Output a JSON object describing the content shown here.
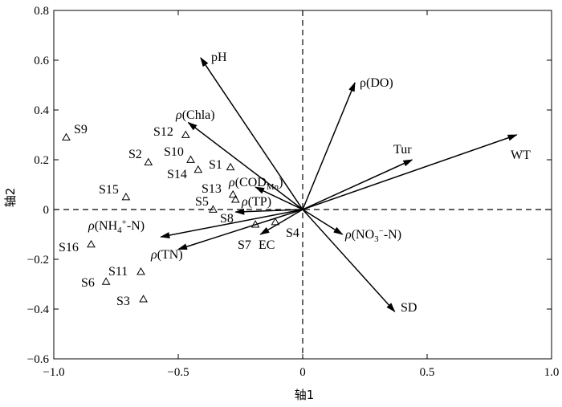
{
  "chart_data": {
    "type": "scatter",
    "xlabel": "轴1",
    "ylabel": "轴2",
    "xlim": [
      -1.0,
      1.0
    ],
    "ylim": [
      -0.6,
      0.8
    ],
    "xticks": [
      -1.0,
      -0.5,
      0,
      0.5,
      1.0
    ],
    "xtick_labels": [
      "−1.0",
      "−0.5",
      "0",
      "0.5",
      "1.0"
    ],
    "yticks": [
      -0.6,
      -0.4,
      -0.2,
      0,
      0.2,
      0.4,
      0.6,
      0.8
    ],
    "ytick_labels": [
      "−0.6",
      "−0.4",
      "−0.2",
      "0",
      "0.2",
      "0.4",
      "0.6",
      "0.8"
    ],
    "reference_lines": {
      "x": 0,
      "y": 0,
      "style": "dashed"
    },
    "sites": [
      {
        "name": "S1",
        "x": -0.29,
        "y": 0.17
      },
      {
        "name": "S2",
        "x": -0.62,
        "y": 0.19
      },
      {
        "name": "S3",
        "x": -0.64,
        "y": -0.36
      },
      {
        "name": "S4",
        "x": -0.11,
        "y": -0.05
      },
      {
        "name": "S5",
        "x": -0.36,
        "y": 0.0
      },
      {
        "name": "S6",
        "x": -0.79,
        "y": -0.29
      },
      {
        "name": "S7",
        "x": -0.19,
        "y": -0.06
      },
      {
        "name": "S8",
        "x": -0.27,
        "y": 0.04
      },
      {
        "name": "S9",
        "x": -0.95,
        "y": 0.29
      },
      {
        "name": "S10",
        "x": -0.45,
        "y": 0.2
      },
      {
        "name": "S11",
        "x": -0.65,
        "y": -0.25
      },
      {
        "name": "S12",
        "x": -0.47,
        "y": 0.3
      },
      {
        "name": "S13",
        "x": -0.28,
        "y": 0.06
      },
      {
        "name": "S14",
        "x": -0.42,
        "y": 0.16
      },
      {
        "name": "S15",
        "x": -0.71,
        "y": 0.05
      },
      {
        "name": "S16",
        "x": -0.85,
        "y": -0.14
      }
    ],
    "vectors": [
      {
        "name": "pH",
        "x": -0.41,
        "y": 0.61
      },
      {
        "name": "ρ(DO)",
        "x": 0.21,
        "y": 0.51
      },
      {
        "name": "ρ(Chla)",
        "x": -0.46,
        "y": 0.35
      },
      {
        "name": "Tur",
        "x": 0.44,
        "y": 0.2
      },
      {
        "name": "WT",
        "x": 0.86,
        "y": 0.3
      },
      {
        "name": "ρ(CODMn)",
        "x": -0.19,
        "y": 0.09
      },
      {
        "name": "ρ(TP)",
        "x": -0.27,
        "y": -0.01
      },
      {
        "name": "ρ(NH4+-N)",
        "x": -0.57,
        "y": -0.11
      },
      {
        "name": "ρ(TN)",
        "x": -0.5,
        "y": -0.16
      },
      {
        "name": "EC",
        "x": -0.17,
        "y": -0.1
      },
      {
        "name": "ρ(NO3−-N)",
        "x": 0.16,
        "y": -0.1
      },
      {
        "name": "SD",
        "x": 0.37,
        "y": -0.41
      }
    ]
  }
}
